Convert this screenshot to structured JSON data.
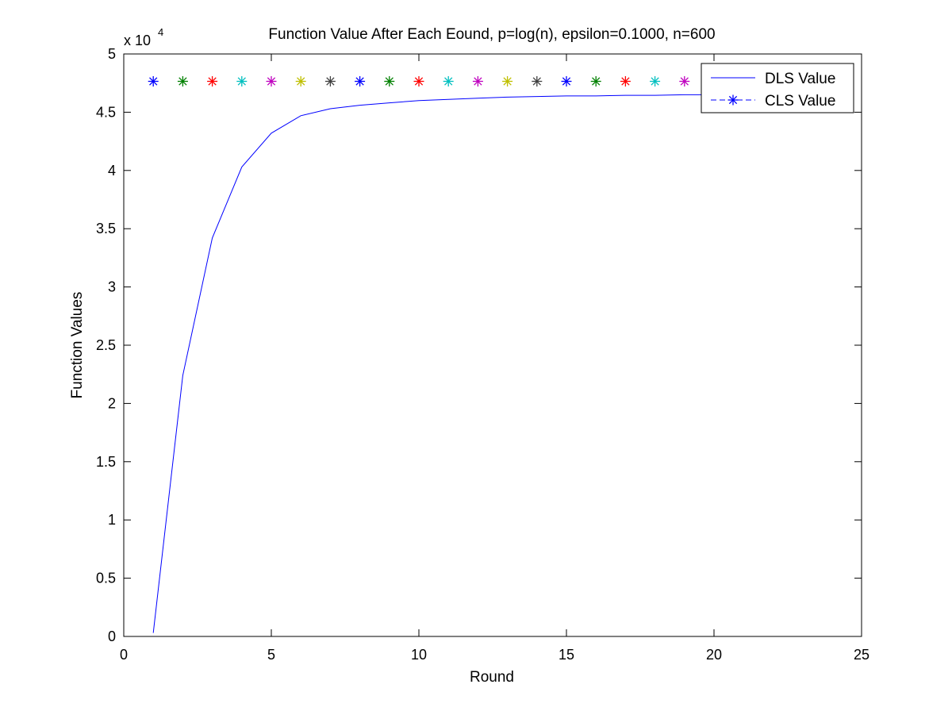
{
  "chart_data": {
    "type": "line",
    "title": "Function Value After Each Eound, p=log(n), epsilon=0.1000, n=600",
    "xlabel": "Round",
    "ylabel": "Function Values",
    "exponent_label": "x 10",
    "exponent_power": "4",
    "xlim": [
      0,
      25
    ],
    "ylim": [
      0,
      5
    ],
    "xticks": [
      0,
      5,
      10,
      15,
      20,
      25
    ],
    "xtick_labels": [
      "0",
      "5",
      "10",
      "15",
      "20",
      "25"
    ],
    "yticks": [
      0,
      0.5,
      1,
      1.5,
      2,
      2.5,
      3,
      3.5,
      4,
      4.5,
      5
    ],
    "ytick_labels": [
      "0",
      "0.5",
      "1",
      "1.5",
      "2",
      "2.5",
      "3",
      "3.5",
      "4",
      "4.5",
      "5"
    ],
    "grid": false,
    "legend_placement": "top-right",
    "series": [
      {
        "name": "DLS Value",
        "style": "solid-line",
        "color": "#0000ff",
        "x": [
          1,
          2,
          3,
          4,
          5,
          6,
          7,
          8,
          9,
          10,
          11,
          12,
          13,
          14,
          15,
          16,
          17,
          18,
          19,
          20
        ],
        "values": [
          0.03,
          2.24,
          3.42,
          4.03,
          4.32,
          4.47,
          4.53,
          4.56,
          4.58,
          4.6,
          4.61,
          4.62,
          4.63,
          4.635,
          4.64,
          4.64,
          4.645,
          4.645,
          4.65,
          4.65
        ]
      },
      {
        "name": "CLS Value",
        "style": "star-markers",
        "color": "#0000ff",
        "x": [
          1,
          2,
          3,
          4,
          5,
          6,
          7,
          8,
          9,
          10,
          11,
          12,
          13,
          14,
          15,
          16,
          17,
          18,
          19
        ],
        "values": [
          4.765,
          4.765,
          4.765,
          4.765,
          4.765,
          4.765,
          4.765,
          4.765,
          4.765,
          4.765,
          4.765,
          4.765,
          4.765,
          4.765,
          4.765,
          4.765,
          4.765,
          4.765,
          4.765
        ],
        "marker_colors": [
          "#0000ff",
          "#008000",
          "#ff0000",
          "#00bfbf",
          "#bf00bf",
          "#bfbf00",
          "#404040",
          "#0000ff",
          "#008000",
          "#ff0000",
          "#00bfbf",
          "#bf00bf",
          "#bfbf00",
          "#404040",
          "#0000ff",
          "#008000",
          "#ff0000",
          "#00bfbf",
          "#bf00bf"
        ]
      }
    ]
  }
}
